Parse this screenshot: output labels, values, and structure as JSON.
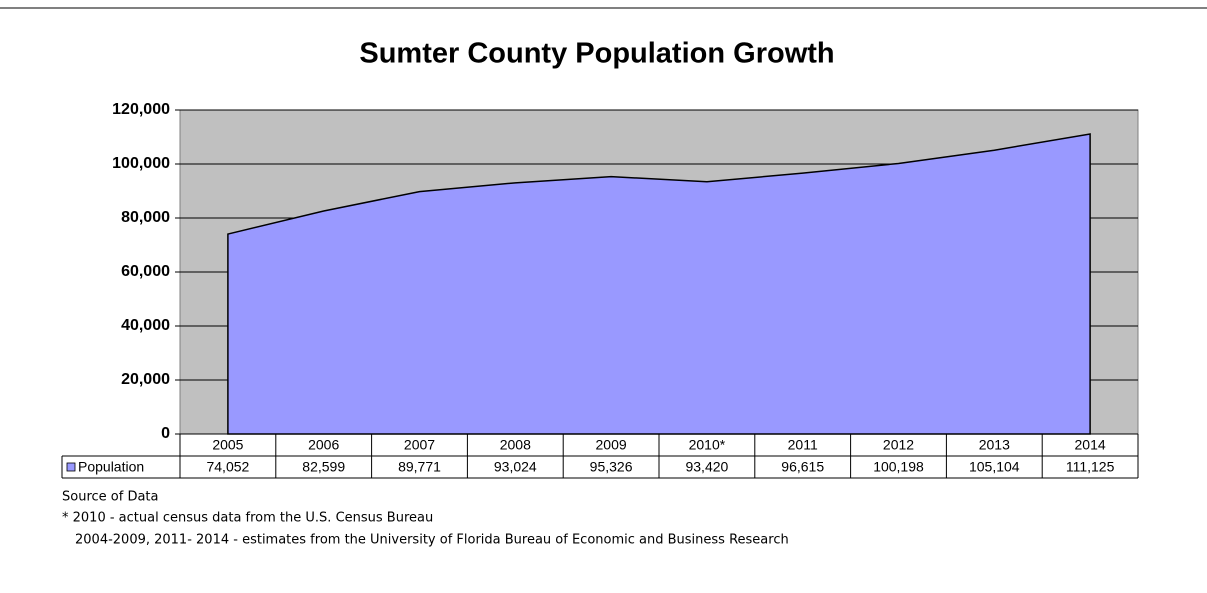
{
  "chart_data": {
    "type": "area",
    "title": "Sumter County Population Growth",
    "categories": [
      "2005",
      "2006",
      "2007",
      "2008",
      "2009",
      "2010*",
      "2011",
      "2012",
      "2013",
      "2014"
    ],
    "series": [
      {
        "name": "Population",
        "color": "#9999ff",
        "values": [
          74052,
          82599,
          89771,
          93024,
          95326,
          93420,
          96615,
          100198,
          105104,
          111125
        ],
        "value_labels": [
          "74,052",
          "82,599",
          "89,771",
          "93,024",
          "95,326",
          "93,420",
          "96,615",
          "100,198",
          "105,104",
          "111,125"
        ]
      }
    ],
    "ylim": [
      0,
      120000
    ],
    "yticks": [
      0,
      {
        "value": 20000,
        "label": "20,000"
      },
      {
        "value": 40000,
        "label": "40,000"
      },
      {
        "value": 60000,
        "label": "60,000"
      },
      {
        "value": 80000,
        "label": "80,000"
      },
      {
        "value": 100000,
        "label": "100,000"
      },
      {
        "value": 120000,
        "label": "120,000"
      }
    ],
    "grid": true,
    "plot_background": "#c0c0c0",
    "notes": [
      "Source of Data",
      "* 2010 - actual census data from  the U.S. Census Bureau",
      "2004-2009, 2011- 2014 - estimates from the University of Florida Bureau of Economic and Business Research"
    ]
  }
}
